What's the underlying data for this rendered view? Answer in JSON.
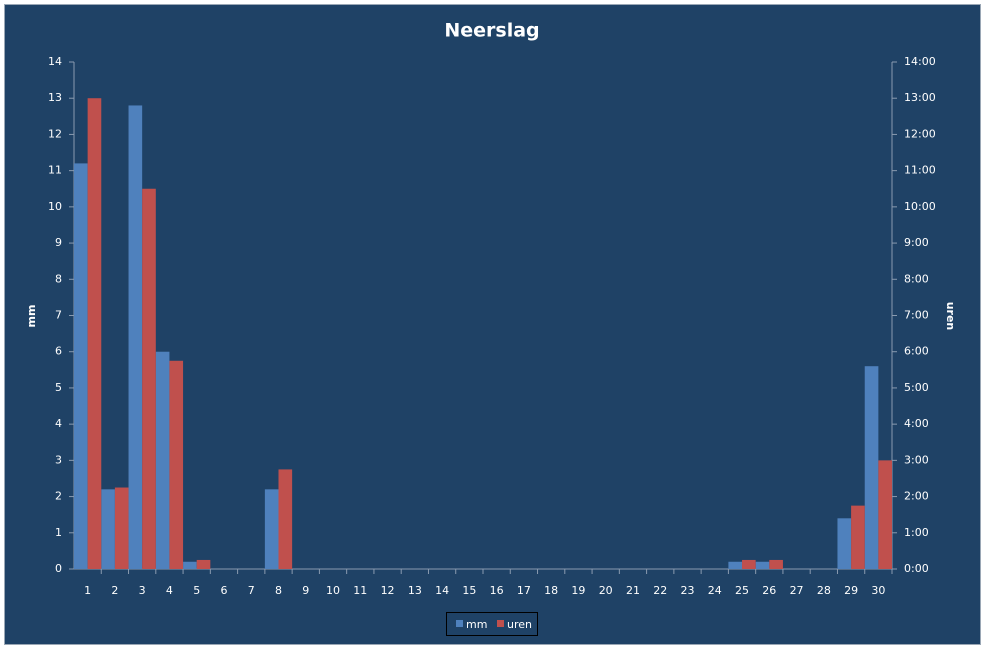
{
  "chart_data": {
    "type": "bar",
    "title": "Neerslag",
    "y_label": "mm",
    "y2_label": "uren",
    "categories": [
      "1",
      "2",
      "3",
      "4",
      "5",
      "6",
      "7",
      "8",
      "9",
      "10",
      "11",
      "12",
      "13",
      "14",
      "15",
      "16",
      "17",
      "18",
      "19",
      "20",
      "21",
      "22",
      "23",
      "24",
      "25",
      "26",
      "27",
      "28",
      "29",
      "30"
    ],
    "series": [
      {
        "name": "mm",
        "color": "#4f81bd",
        "values": [
          11.2,
          2.2,
          12.8,
          6.0,
          0.2,
          0,
          0,
          2.2,
          0,
          0,
          0,
          0,
          0,
          0,
          0,
          0,
          0,
          0,
          0,
          0,
          0,
          0,
          0,
          0,
          0.2,
          0.2,
          0,
          0,
          1.4,
          5.6
        ]
      },
      {
        "name": "uren",
        "color": "#c0504d",
        "axis": "y2",
        "values": [
          13.0,
          2.25,
          10.5,
          5.75,
          0.25,
          0,
          0,
          2.75,
          0,
          0,
          0,
          0,
          0,
          0,
          0,
          0,
          0,
          0,
          0,
          0,
          0,
          0,
          0,
          0,
          0.25,
          0.25,
          0,
          0,
          1.75,
          3.0
        ]
      }
    ],
    "ylim": [
      0,
      14
    ],
    "yticks": [
      0,
      1,
      2,
      3,
      4,
      5,
      6,
      7,
      8,
      9,
      10,
      11,
      12,
      13,
      14
    ],
    "y2lim": [
      0,
      14
    ],
    "y2ticks": [
      {
        "value": 0,
        "label": "0:00"
      },
      {
        "value": 1,
        "label": "1:00"
      },
      {
        "value": 2,
        "label": "2:00"
      },
      {
        "value": 3,
        "label": "3:00"
      },
      {
        "value": 4,
        "label": "4:00"
      },
      {
        "value": 5,
        "label": "5:00"
      },
      {
        "value": 6,
        "label": "6:00"
      },
      {
        "value": 7,
        "label": "7:00"
      },
      {
        "value": 8,
        "label": "8:00"
      },
      {
        "value": 9,
        "label": "9:00"
      },
      {
        "value": 10,
        "label": "10:00"
      },
      {
        "value": 11,
        "label": "11:00"
      },
      {
        "value": 12,
        "label": "12:00"
      },
      {
        "value": 13,
        "label": "13:00"
      },
      {
        "value": 14,
        "label": "14:00"
      }
    ],
    "legend": "bottom"
  }
}
